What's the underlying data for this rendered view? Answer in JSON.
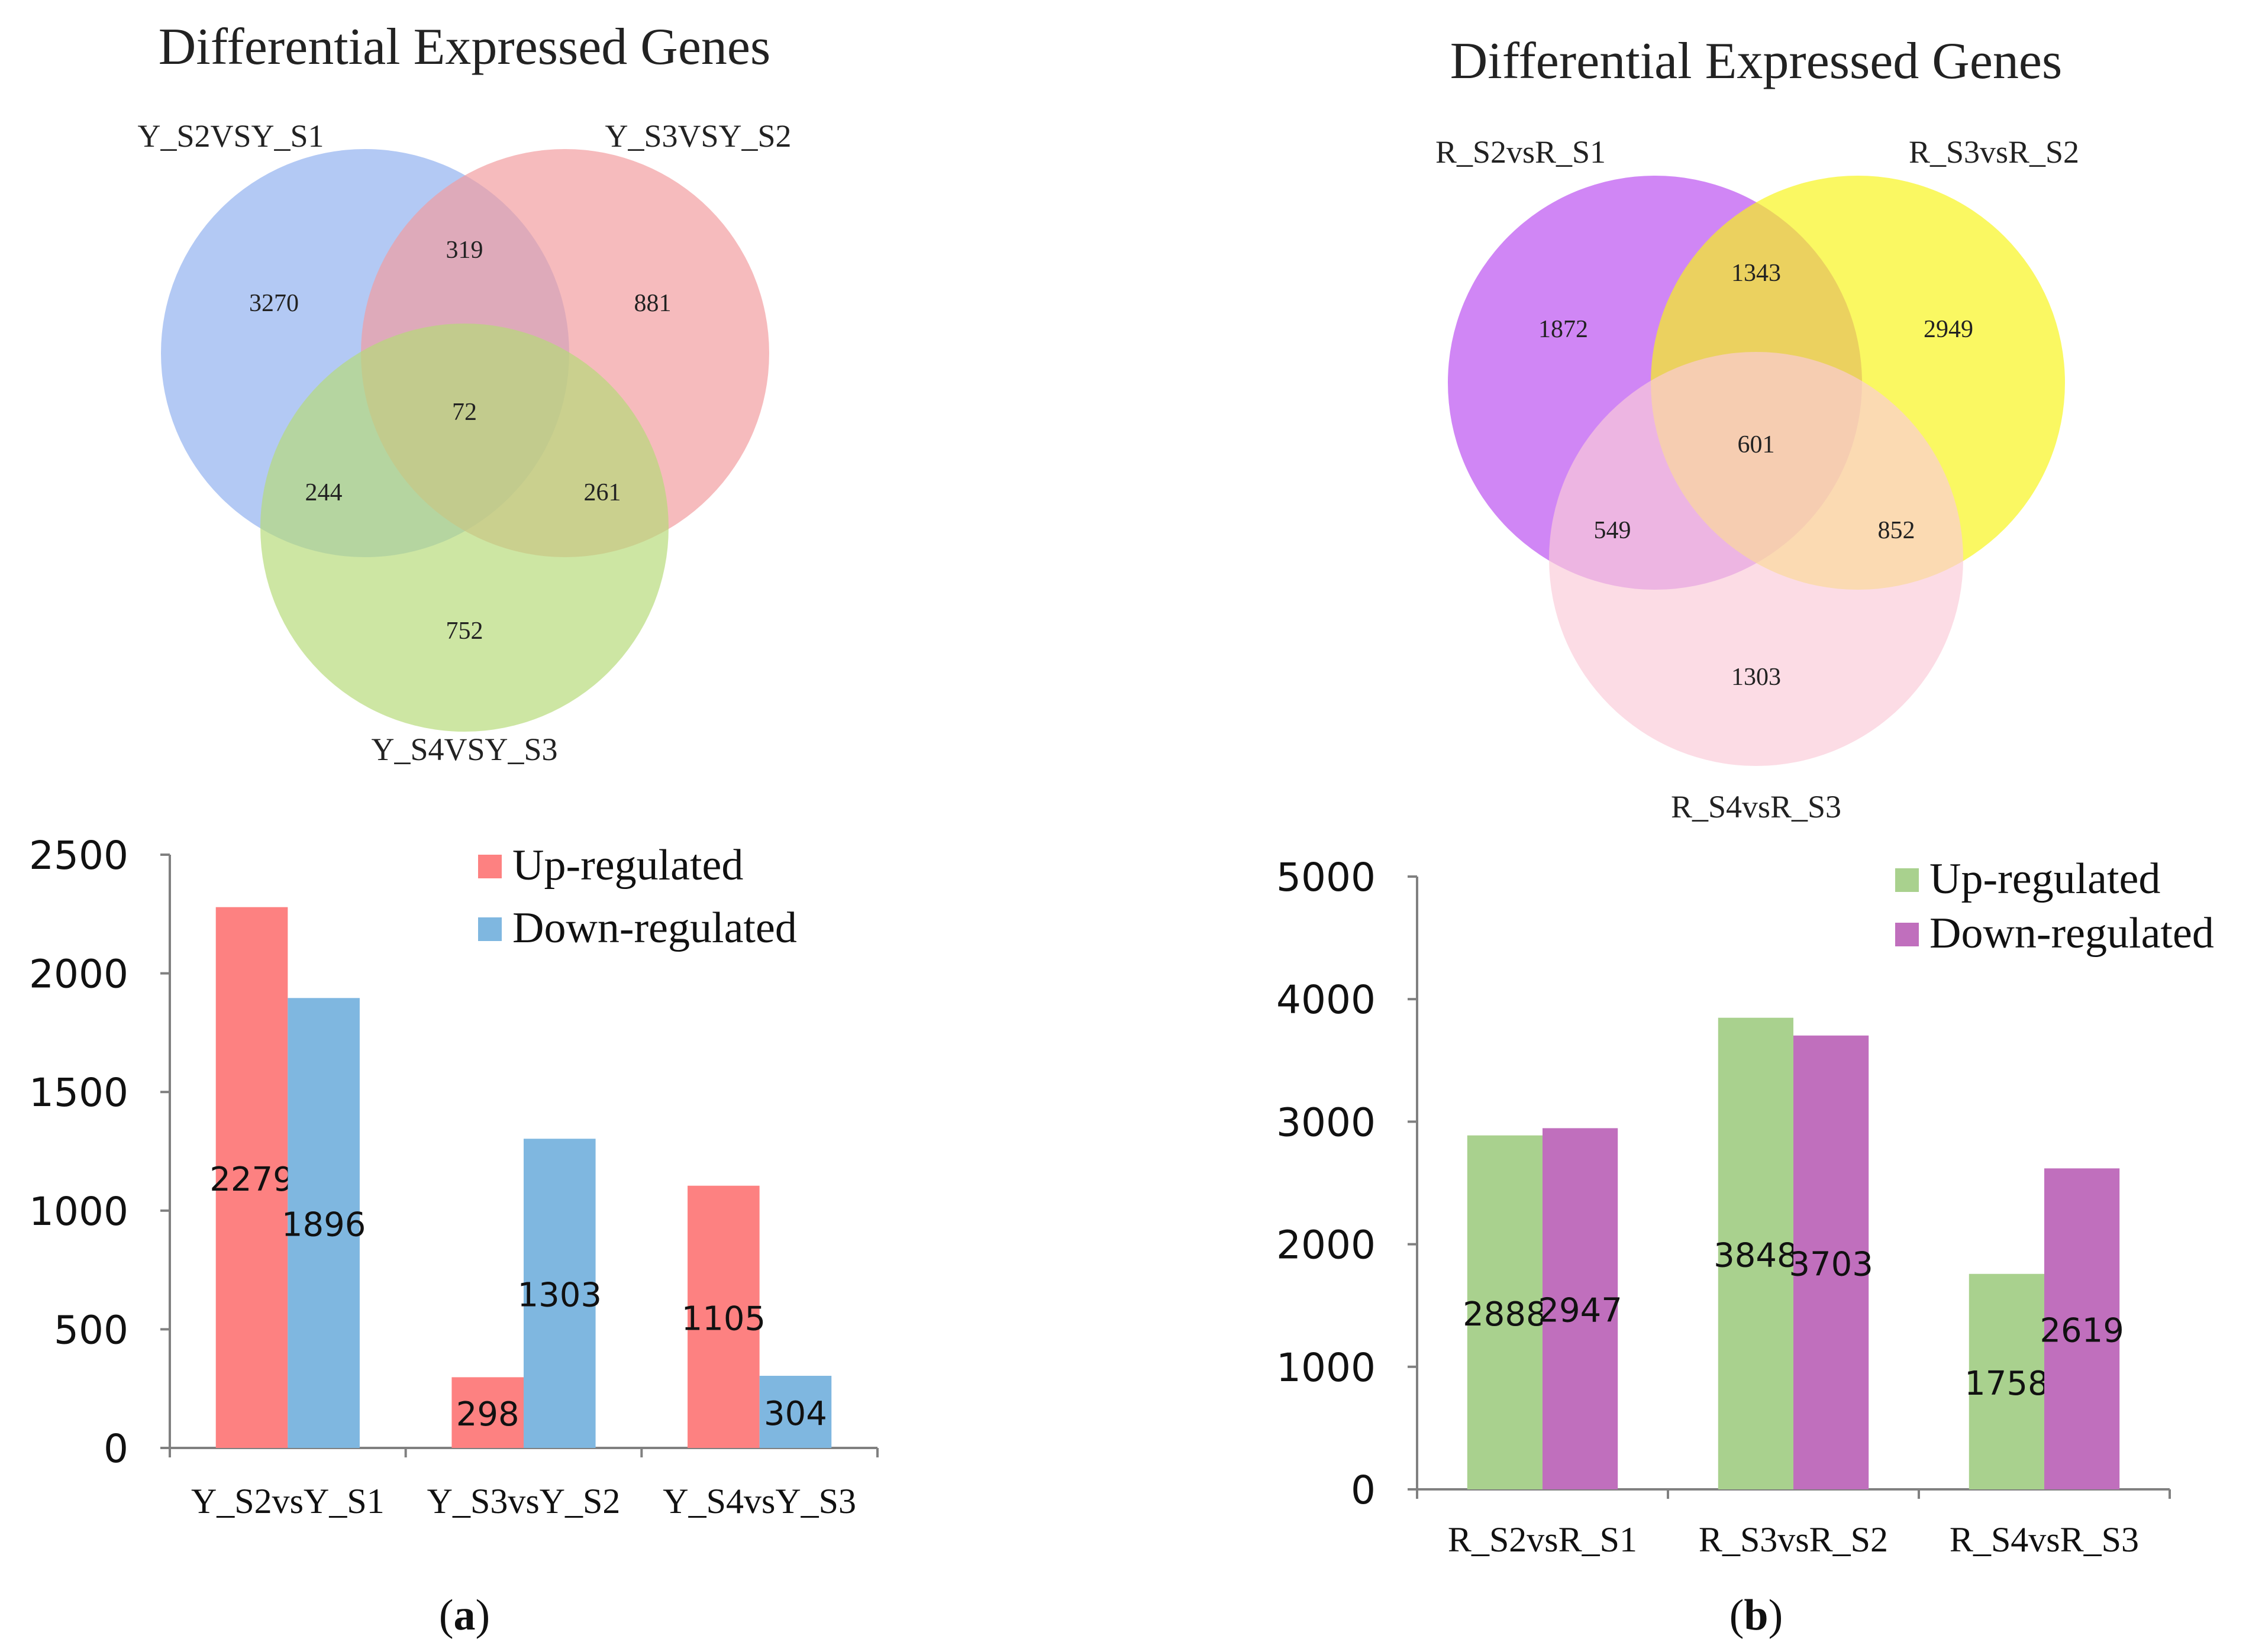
{
  "chart_data": [
    {
      "type": "venn",
      "panel": "a",
      "title": "Differential Expressed Genes",
      "sets": [
        {
          "name": "Y_S2VSY_S1",
          "color": "#8fb0ef"
        },
        {
          "name": "Y_S3VSY_S2",
          "color": "#f29b9d"
        },
        {
          "name": "Y_S4VSY_S3",
          "color": "#b5da77"
        }
      ],
      "regions": [
        {
          "sets": [
            "Y_S2VSY_S1"
          ],
          "value": 3270
        },
        {
          "sets": [
            "Y_S3VSY_S2"
          ],
          "value": 881
        },
        {
          "sets": [
            "Y_S4VSY_S3"
          ],
          "value": 752
        },
        {
          "sets": [
            "Y_S2VSY_S1",
            "Y_S3VSY_S2"
          ],
          "value": 319
        },
        {
          "sets": [
            "Y_S2VSY_S1",
            "Y_S4VSY_S3"
          ],
          "value": 244
        },
        {
          "sets": [
            "Y_S3VSY_S2",
            "Y_S4VSY_S3"
          ],
          "value": 261
        },
        {
          "sets": [
            "Y_S2VSY_S1",
            "Y_S3VSY_S2",
            "Y_S4VSY_S3"
          ],
          "value": 72
        }
      ]
    },
    {
      "type": "venn",
      "panel": "b",
      "title": "Differential Expressed Genes",
      "sets": [
        {
          "name": "R_S2vsR_S1",
          "color": "#b94cf0"
        },
        {
          "name": "R_S3vsR_S2",
          "color": "#f8f418"
        },
        {
          "name": "R_S4vsR_S3",
          "color": "#fbcbd8"
        }
      ],
      "regions": [
        {
          "sets": [
            "R_S2vsR_S1"
          ],
          "value": 1872
        },
        {
          "sets": [
            "R_S3vsR_S2"
          ],
          "value": 2949
        },
        {
          "sets": [
            "R_S4vsR_S3"
          ],
          "value": 1303
        },
        {
          "sets": [
            "R_S2vsR_S1",
            "R_S3vsR_S2"
          ],
          "value": 1343
        },
        {
          "sets": [
            "R_S2vsR_S1",
            "R_S4vsR_S3"
          ],
          "value": 549
        },
        {
          "sets": [
            "R_S3vsR_S2",
            "R_S4vsR_S3"
          ],
          "value": 852
        },
        {
          "sets": [
            "R_S2vsR_S1",
            "R_S3vsR_S2",
            "R_S4vsR_S3"
          ],
          "value": 601
        }
      ]
    },
    {
      "type": "bar",
      "panel": "a",
      "categories": [
        "Y_S2vsY_S1",
        "Y_S3vsY_S2",
        "Y_S4vsY_S3"
      ],
      "series": [
        {
          "name": "Up-regulated",
          "color": "#fd8181",
          "values": [
            2279,
            298,
            1105
          ]
        },
        {
          "name": "Down-regulated",
          "color": "#7fb7e0",
          "values": [
            1896,
            1303,
            304
          ]
        }
      ],
      "ylim": [
        0,
        2500
      ],
      "yticks": [
        0,
        500,
        1000,
        1500,
        2000,
        2500
      ],
      "legend": "top-right",
      "xlabel": "",
      "ylabel": ""
    },
    {
      "type": "bar",
      "panel": "b",
      "categories": [
        "R_S2vsR_S1",
        "R_S3vsR_S2",
        "R_S4vsR_S3"
      ],
      "series": [
        {
          "name": "Up-regulated",
          "color": "#a9d18e",
          "values": [
            2888,
            3848,
            1758
          ]
        },
        {
          "name": "Down-regulated",
          "color": "#c06fbd",
          "values": [
            2947,
            3703,
            2619
          ]
        }
      ],
      "ylim": [
        0,
        5000
      ],
      "yticks": [
        0,
        1000,
        2000,
        3000,
        4000,
        5000
      ],
      "legend": "top-right",
      "xlabel": "",
      "ylabel": ""
    }
  ],
  "panel_labels": [
    "(a)",
    "(b)"
  ]
}
